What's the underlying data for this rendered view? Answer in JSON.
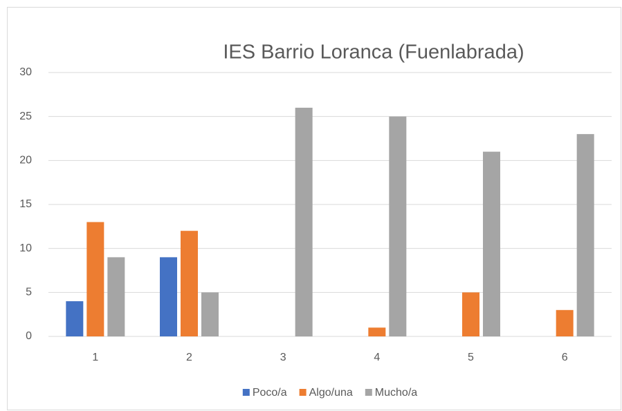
{
  "chart_data": {
    "type": "bar",
    "title": "IES Barrio Loranca (Fuenlabrada)",
    "categories": [
      "1",
      "2",
      "3",
      "4",
      "5",
      "6"
    ],
    "series": [
      {
        "name": "Poco/a",
        "color": "#4472c4",
        "values": [
          4,
          9,
          0,
          0,
          0,
          0
        ]
      },
      {
        "name": "Algo/una",
        "color": "#ed7d31",
        "values": [
          13,
          12,
          0,
          1,
          5,
          3
        ]
      },
      {
        "name": "Mucho/a",
        "color": "#a5a5a5",
        "values": [
          9,
          5,
          26,
          25,
          21,
          23
        ]
      }
    ],
    "ylim": [
      0,
      30
    ],
    "yticks": [
      0,
      5,
      10,
      15,
      20,
      25,
      30
    ],
    "grid": true,
    "legend": "bottom"
  }
}
